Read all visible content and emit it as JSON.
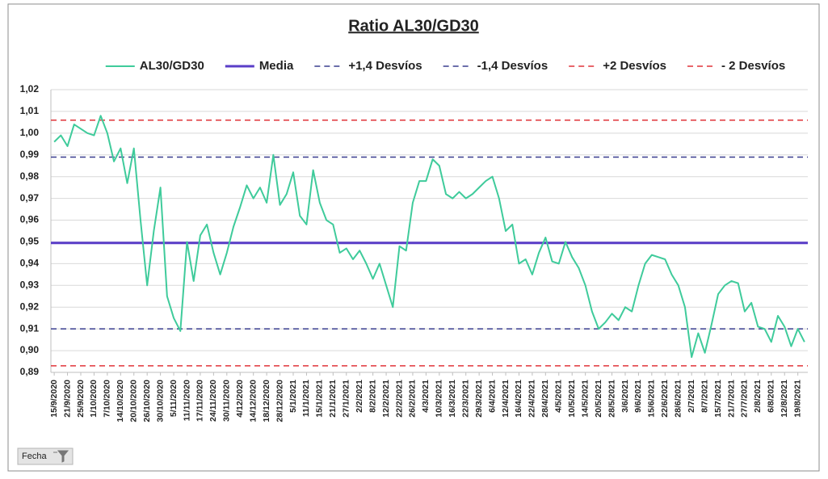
{
  "chart_data": {
    "type": "line",
    "title": "Ratio AL30/GD30",
    "title_color": "#6a3fd0",
    "categories": [
      "15/9/2020",
      null,
      "21/9/2020",
      null,
      "25/9/2020",
      null,
      "1/10/2020",
      null,
      "7/10/2020",
      null,
      "14/10/2020",
      null,
      "20/10/2020",
      null,
      "26/10/2020",
      null,
      "30/10/2020",
      null,
      "5/11/2020",
      null,
      "11/11/2020",
      null,
      "17/11/2020",
      null,
      "24/11/2020",
      null,
      "30/11/2020",
      null,
      "4/12/2020",
      null,
      "14/12/2020",
      null,
      "18/12/2020",
      null,
      "28/12/2020",
      null,
      "5/1/2021",
      null,
      "11/1/2021",
      null,
      "15/1/2021",
      null,
      "21/1/2021",
      null,
      "27/1/2021",
      null,
      "2/2/2021",
      null,
      "8/2/2021",
      null,
      "12/2/2021",
      null,
      "22/2/2021",
      null,
      "26/2/2021",
      null,
      "4/3/2021",
      null,
      "10/3/2021",
      null,
      "16/3/2021",
      null,
      "22/3/2021",
      null,
      "29/3/2021",
      null,
      "6/4/2021",
      null,
      "12/4/2021",
      null,
      "16/4/2021",
      null,
      "22/4/2021",
      null,
      "28/4/2021",
      null,
      "4/5/2021",
      null,
      "10/5/2021",
      null,
      "14/5/2021",
      null,
      "20/5/2021",
      null,
      "28/5/2021",
      null,
      "3/6/2021",
      null,
      "9/6/2021",
      null,
      "15/6/2021",
      null,
      "22/6/2021",
      null,
      "28/6/2021",
      null,
      "2/7/2021",
      null,
      "8/7/2021",
      null,
      "15/7/2021",
      null,
      "21/7/2021",
      null,
      "27/7/2021",
      null,
      "2/8/2021",
      null,
      "6/8/2021",
      null,
      "12/8/2021",
      null,
      "19/8/2021",
      null
    ],
    "series": [
      {
        "name": "AL30/GD30",
        "color": "#3fcb9b",
        "values": [
          0.996,
          0.999,
          0.994,
          1.004,
          1.002,
          1.0,
          0.999,
          1.008,
          1.0,
          0.987,
          0.993,
          0.977,
          0.993,
          0.96,
          0.93,
          0.955,
          0.975,
          0.925,
          0.915,
          0.909,
          0.95,
          0.932,
          0.953,
          0.958,
          0.945,
          0.935,
          0.945,
          0.957,
          0.966,
          0.976,
          0.97,
          0.975,
          0.968,
          0.99,
          0.967,
          0.972,
          0.982,
          0.962,
          0.958,
          0.983,
          0.968,
          0.96,
          0.958,
          0.945,
          0.947,
          0.942,
          0.946,
          0.94,
          0.933,
          0.94,
          0.93,
          0.92,
          0.948,
          0.946,
          0.968,
          0.978,
          0.978,
          0.988,
          0.985,
          0.972,
          0.97,
          0.973,
          0.97,
          0.972,
          0.975,
          0.978,
          0.98,
          0.97,
          0.955,
          0.958,
          0.94,
          0.942,
          0.935,
          0.945,
          0.952,
          0.941,
          0.94,
          0.95,
          0.943,
          0.938,
          0.93,
          0.918,
          0.91,
          0.913,
          0.917,
          0.914,
          0.92,
          0.918,
          0.93,
          0.94,
          0.944,
          0.943,
          0.942,
          0.935,
          0.93,
          0.92,
          0.897,
          0.908,
          0.899,
          0.912,
          0.926,
          0.93,
          0.932,
          0.931,
          0.918,
          0.922,
          0.911,
          0.91,
          0.904,
          0.916,
          0.911,
          0.902,
          0.91,
          0.904
        ]
      }
    ],
    "reference_lines": [
      {
        "name": "Media",
        "color": "#5a3ec8",
        "value": 0.9495,
        "dashed": false
      },
      {
        "name": "+1,4 Desvíos",
        "color": "#3a3f8f",
        "value": 0.989,
        "dashed": true
      },
      {
        "name": "-1,4 Desvíos",
        "color": "#3a3f8f",
        "value": 0.91,
        "dashed": true
      },
      {
        "name": "+2 Desvíos",
        "color": "#e0343a",
        "value": 1.006,
        "dashed": true
      },
      {
        "name": "- 2 Desvíos",
        "color": "#e0343a",
        "value": 0.893,
        "dashed": true
      }
    ],
    "ylim": [
      0.89,
      1.02
    ],
    "yticks": [
      {
        "value": 0.89,
        "label": "0,89"
      },
      {
        "value": 0.9,
        "label": "0,90"
      },
      {
        "value": 0.91,
        "label": "0,91"
      },
      {
        "value": 0.92,
        "label": "0,92"
      },
      {
        "value": 0.93,
        "label": "0,93"
      },
      {
        "value": 0.94,
        "label": "0,94"
      },
      {
        "value": 0.95,
        "label": "0,95"
      },
      {
        "value": 0.96,
        "label": "0,96"
      },
      {
        "value": 0.97,
        "label": "0,97"
      },
      {
        "value": 0.98,
        "label": "0,98"
      },
      {
        "value": 0.99,
        "label": "0,99"
      },
      {
        "value": 1.0,
        "label": "1,00"
      },
      {
        "value": 1.01,
        "label": "1,01"
      },
      {
        "value": 1.02,
        "label": "1,02"
      }
    ],
    "grid": true,
    "legend": "top"
  },
  "filter_button": "Fecha"
}
